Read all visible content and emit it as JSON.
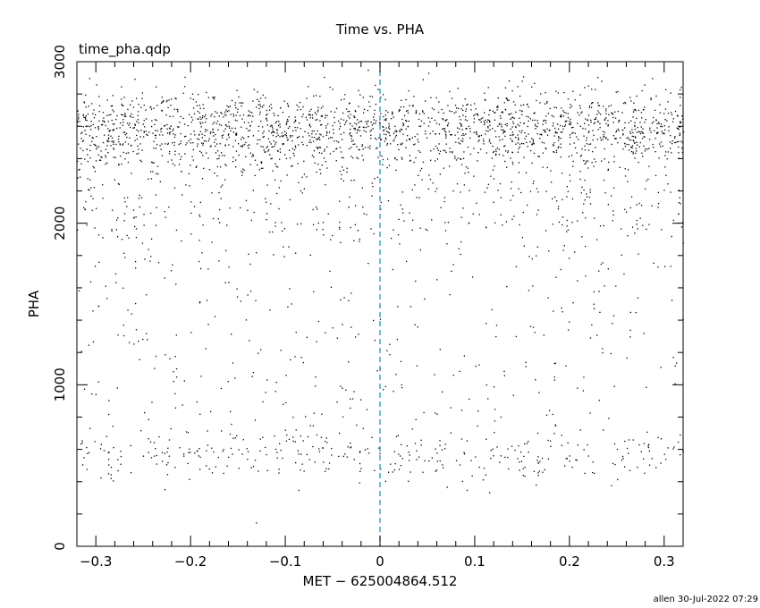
{
  "chart_data": {
    "type": "scatter",
    "title": "Time vs. PHA",
    "subtitle": "time_pha.qdp",
    "xlabel": "MET − 625004864.512",
    "ylabel": "PHA",
    "xlim": [
      -0.32,
      0.32
    ],
    "ylim": [
      0,
      3000
    ],
    "x_ticks": [
      -0.3,
      -0.2,
      -0.1,
      0,
      0.1,
      0.2,
      0.3
    ],
    "x_tick_labels": [
      "−0.3",
      "−0.2",
      "−0.1",
      "0",
      "0.1",
      "0.2",
      "0.3"
    ],
    "y_ticks": [
      0,
      1000,
      2000,
      3000
    ],
    "y_tick_labels": [
      "0",
      "1000",
      "2000",
      "3000"
    ],
    "reference_line": {
      "x": 0,
      "style": "dashed",
      "color": "#2a9aa8"
    },
    "marker_color": "#000000",
    "grid": false,
    "bands": [
      {
        "pha_center": 2600,
        "pha_spread": 110,
        "density": "high",
        "events": 1800
      },
      {
        "pha_range": [
          1950,
          2500
        ],
        "density": "medium",
        "events": 500
      },
      {
        "pha_range": [
          800,
          1950
        ],
        "density": "low",
        "events": 350
      },
      {
        "pha_center": 580,
        "pha_spread": 90,
        "density": "medium",
        "events": 380
      }
    ]
  },
  "footer": {
    "stamp": "allen 30-Jul-2022 07:29"
  }
}
